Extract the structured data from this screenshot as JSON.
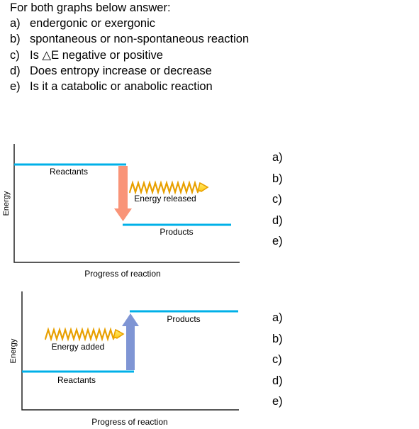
{
  "instructions": {
    "title": "For both graphs below answer:",
    "items": [
      {
        "letter": "a)",
        "text": "endergonic or exergonic"
      },
      {
        "letter": "b)",
        "text": "spontaneous or non-spontaneous reaction"
      },
      {
        "letter": "c)",
        "text": "Is △E negative or positive"
      },
      {
        "letter": "d)",
        "text": "Does entropy increase or decrease"
      },
      {
        "letter": "e)",
        "text": "Is it a catabolic or anabolic reaction"
      }
    ]
  },
  "diagram1": {
    "ylabel": "Energy",
    "xlabel": "Progress of reaction",
    "reactants_label": "Reactants",
    "products_label": "Products",
    "energy_label": "Energy released",
    "answers": [
      "a)",
      "b)",
      "c)",
      "d)",
      "e)"
    ]
  },
  "diagram2": {
    "ylabel": "Energy",
    "xlabel": "Progress of reaction",
    "reactants_label": "Reactants",
    "products_label": "Products",
    "energy_label": "Energy added",
    "answers": [
      "a)",
      "b)",
      "c)",
      "d)",
      "e)"
    ]
  },
  "colors": {
    "level_line": "#00b0e8",
    "release_arrow": "#f99478",
    "add_arrow": "#7f95d4",
    "zigzag_fill": "#ffd21f",
    "zigzag_stroke": "#e8a800"
  }
}
